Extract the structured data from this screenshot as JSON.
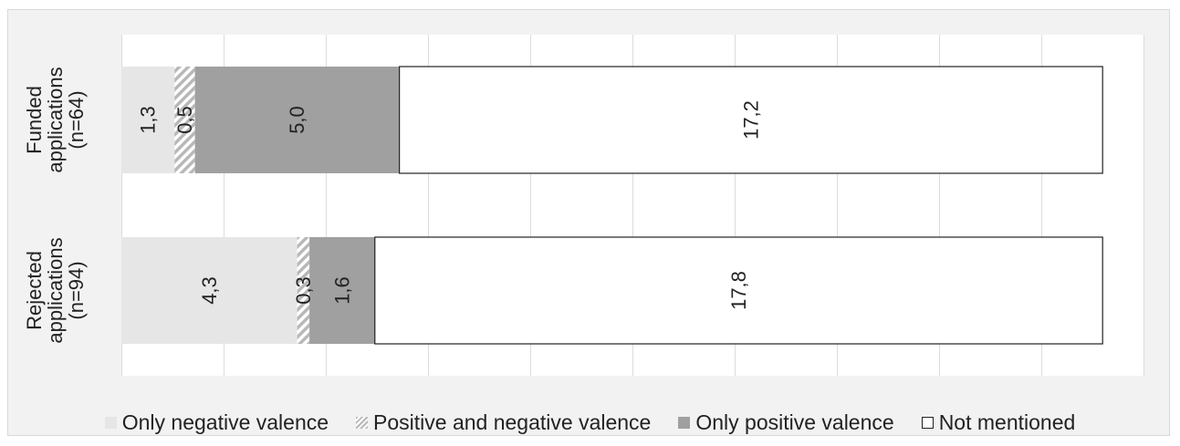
{
  "chart_data": {
    "type": "bar",
    "orientation": "horizontal",
    "stacked": true,
    "categories": [
      "Funded applications (n=64)",
      "Rejected applications (n=94)"
    ],
    "category_lines": [
      [
        "Funded",
        "applications",
        "(n=64)"
      ],
      [
        "Rejected",
        "applications",
        "(n=94)"
      ]
    ],
    "series": [
      {
        "name": "Only negative valence",
        "values": [
          1.3,
          4.3
        ],
        "labels": [
          "1,3",
          "4,3"
        ],
        "color": "#e6e6e6",
        "pattern": "solid"
      },
      {
        "name": "Positive and negative valence",
        "values": [
          0.5,
          0.3
        ],
        "labels": [
          "0,5",
          "0,3"
        ],
        "color": "#b8b8b8",
        "pattern": "hatched"
      },
      {
        "name": "Only positive valence",
        "values": [
          5.0,
          1.6
        ],
        "labels": [
          "5,0",
          "1,6"
        ],
        "color": "#a0a0a0",
        "pattern": "solid"
      },
      {
        "name": "Not mentioned",
        "values": [
          17.2,
          17.8
        ],
        "labels": [
          "17,2",
          "17,8"
        ],
        "color": "#ffffff",
        "pattern": "outlined"
      }
    ],
    "xlim": [
      0,
      25
    ],
    "grid": true,
    "legend_position": "bottom"
  }
}
